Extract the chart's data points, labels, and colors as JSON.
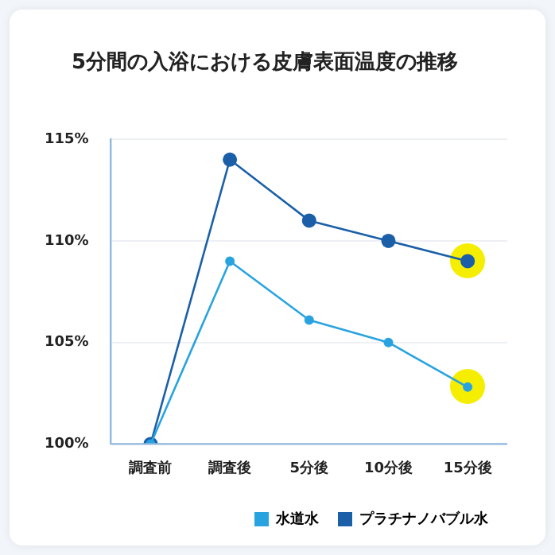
{
  "chart_data": {
    "type": "line",
    "title": "5分間の入浴における皮膚表面温度の推移",
    "categories": [
      "調査前",
      "調査後",
      "5分後",
      "10分後",
      "15分後"
    ],
    "series": [
      {
        "name": "水道水",
        "color": "#29a3e0",
        "values": [
          100,
          109,
          106.1,
          105,
          102.8
        ]
      },
      {
        "name": "プラチナノバブル水",
        "color": "#1a5fa8",
        "values": [
          100,
          114,
          111,
          110,
          109
        ]
      }
    ],
    "ylim": [
      100,
      115
    ],
    "yticks": [
      {
        "value": 100,
        "label": "100%"
      },
      {
        "value": 105,
        "label": "105%"
      },
      {
        "value": 110,
        "label": "110%"
      },
      {
        "value": 115,
        "label": "115%"
      }
    ],
    "grid": "y",
    "legend": "bottom right",
    "marker": "circle",
    "line_style": "solid"
  }
}
